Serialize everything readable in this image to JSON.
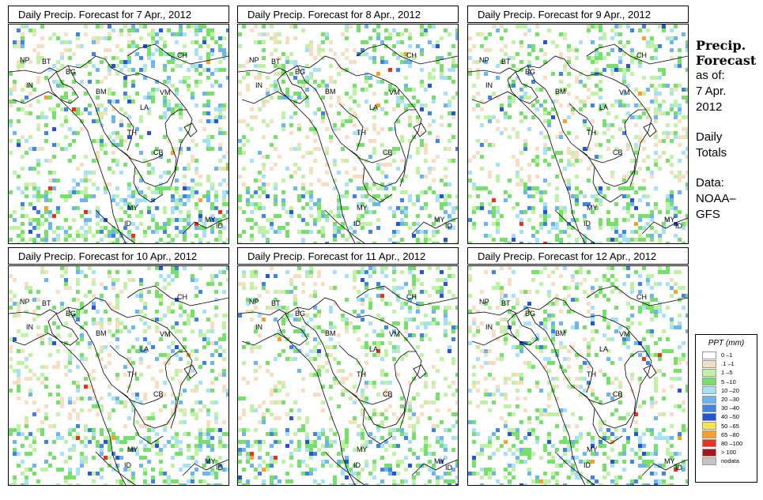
{
  "panels": [
    {
      "title": "Daily Precip. Forecast for  7 Apr., 2012"
    },
    {
      "title": "Daily Precip. Forecast for  8 Apr., 2012"
    },
    {
      "title": "Daily Precip. Forecast for  9 Apr., 2012"
    },
    {
      "title": "Daily Precip. Forecast for  10 Apr., 2012"
    },
    {
      "title": "Daily Precip. Forecast for  11 Apr., 2012"
    },
    {
      "title": "Daily Precip. Forecast for  12 Apr., 2012"
    }
  ],
  "map_labels": [
    "NP",
    "BT",
    "BG",
    "IN",
    "BM",
    "CH",
    "VM",
    "LA",
    "TH",
    "CB",
    "MY",
    "MY",
    "ID",
    "ID"
  ],
  "side_panel": {
    "title_line1": "Precip.",
    "title_line2": "Forecast",
    "as_of": "as of:",
    "date_line1": "7 Apr.",
    "date_line2": "2012",
    "totals_line1": "Daily",
    "totals_line2": "Totals",
    "data_line1": "Data:",
    "data_line2": "NOAA–",
    "data_line3": "GFS"
  },
  "legend": {
    "title": "PPT (mm)",
    "items": [
      {
        "label": "0 –1",
        "color": "#ffffff"
      },
      {
        "label": ".1 –1",
        "color": "#f5dfc2"
      },
      {
        "label": "1 –5",
        "color": "#bff2a5"
      },
      {
        "label": "5 –10",
        "color": "#77e06b"
      },
      {
        "label": "10 –20",
        "color": "#a8e0f5"
      },
      {
        "label": "20 –30",
        "color": "#6db5ee"
      },
      {
        "label": "30 –40",
        "color": "#3e84e0"
      },
      {
        "label": "40 –50",
        "color": "#2555d6"
      },
      {
        "label": "50 –65",
        "color": "#f7e44a"
      },
      {
        "label": "65 –80",
        "color": "#f7a12a"
      },
      {
        "label": "80 –100",
        "color": "#e8341c"
      },
      {
        "label": "> 100",
        "color": "#a8151a"
      },
      {
        "label": "nodata",
        "color": "#c4c4c4"
      }
    ]
  }
}
